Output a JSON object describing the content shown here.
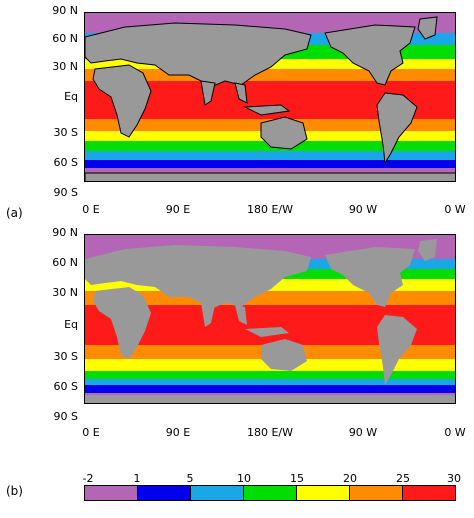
{
  "panels": [
    {
      "label": "(a)",
      "y_ticks": [
        "90 N",
        "60 N",
        "30 N",
        "Eq",
        "30 S",
        "60 S",
        "90 S"
      ],
      "x_ticks": [
        "0 E",
        "90 E",
        "180 E/W",
        "90 W",
        "0 W"
      ]
    },
    {
      "label": "(b)",
      "y_ticks": [
        "90 N",
        "60 N",
        "30 N",
        "Eq",
        "30 S",
        "60 S",
        "90 S"
      ],
      "x_ticks": [
        "0 E",
        "90 E",
        "180 E/W",
        "90 W",
        "0 W"
      ]
    }
  ],
  "colorbar": {
    "ticks": [
      "-2",
      "1",
      "5",
      "10",
      "15",
      "20",
      "25",
      "30"
    ],
    "colors": [
      "#b565b5",
      "#0000ee",
      "#1aa7e8",
      "#00dd00",
      "#ffff00",
      "#ff8c00",
      "#ff1a1a"
    ]
  },
  "land_color": "#999999",
  "coastline_color": "#000000"
}
